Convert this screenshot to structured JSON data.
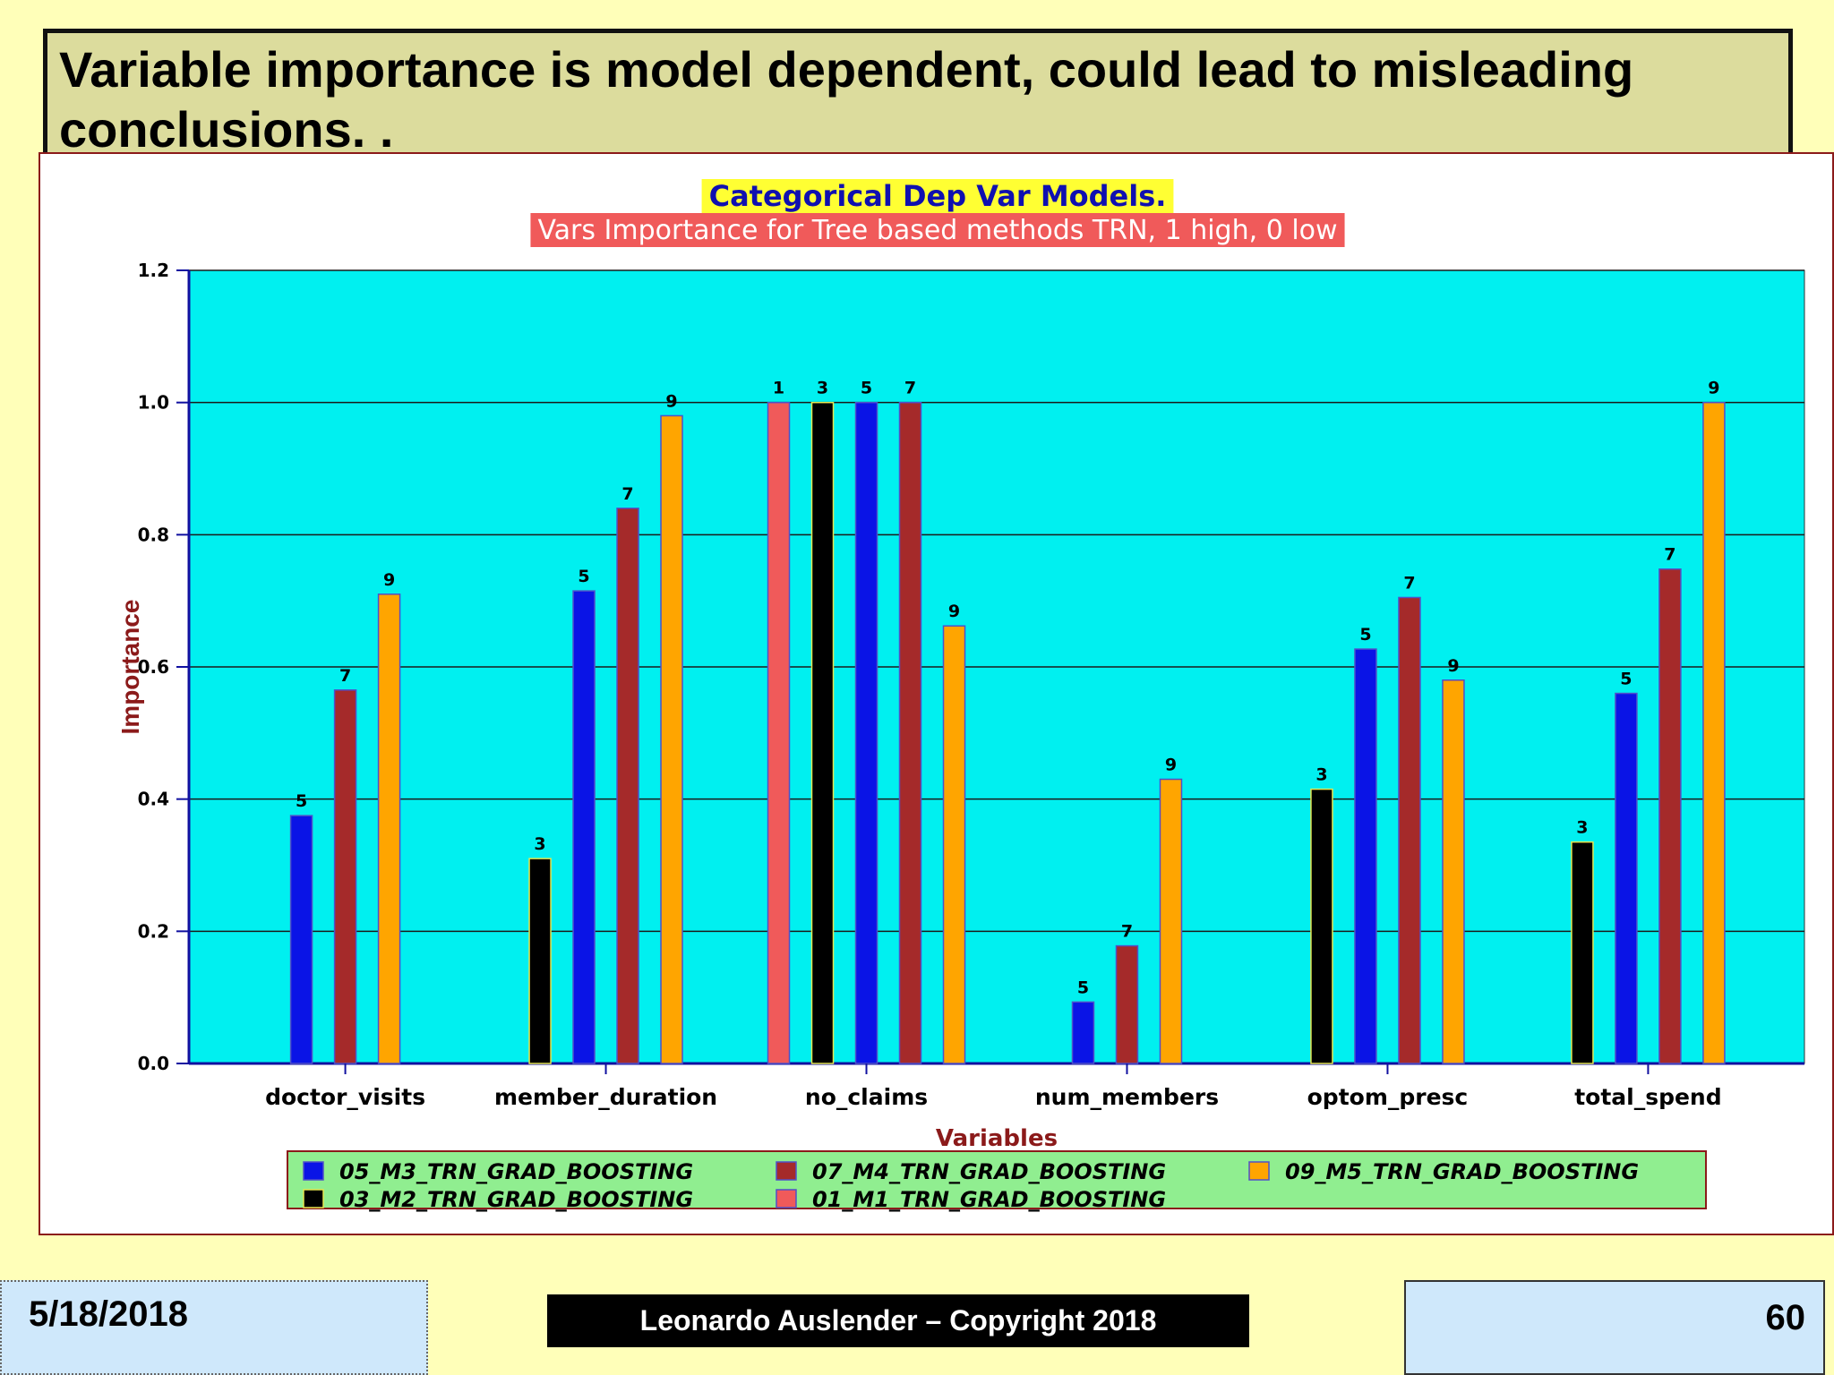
{
  "slide": {
    "title": "Variable importance is model dependent, could lead to misleading conclusions. .",
    "footer_date": "5/18/2018",
    "footer_copyright": "Leonardo Auslender – Copyright 2018",
    "page_number": "60"
  },
  "colors": {
    "plot_background": "#00F0F0",
    "title_highlight": "#FFFF33",
    "title_text": "#1010B0",
    "subtitle_highlight": "#F05A5A",
    "subtitle_text": "#FFFFFF",
    "axis_label": "#8B1A1A",
    "legend_background": "#90EE90"
  },
  "chart_data": {
    "type": "bar",
    "title": "Categorical Dep Var Models.",
    "subtitle": "Vars Importance for Tree based methods TRN, 1 high, 0 low",
    "xlabel": "Variables",
    "ylabel": "Importance",
    "ylim": [
      0,
      1.2
    ],
    "yticks": [
      "0.0",
      "0.2",
      "0.4",
      "0.6",
      "0.8",
      "1.0",
      "1.2"
    ],
    "grid": true,
    "categories": [
      "doctor_visits",
      "member_duration",
      "no_claims",
      "num_members",
      "optom_presc",
      "total_spend"
    ],
    "series": [
      {
        "name": "01_M1_TRN_GRAD_BOOSTING",
        "label": "1",
        "color": "#F05A5A",
        "values": [
          null,
          null,
          1.0,
          null,
          null,
          null
        ]
      },
      {
        "name": "03_M2_TRN_GRAD_BOOSTING",
        "label": "3",
        "color": "#000000",
        "values": [
          null,
          0.31,
          1.0,
          null,
          0.415,
          0.335
        ]
      },
      {
        "name": "05_M3_TRN_GRAD_BOOSTING",
        "label": "5",
        "color": "#0A14E6",
        "values": [
          0.375,
          0.715,
          1.0,
          0.093,
          0.627,
          0.56
        ]
      },
      {
        "name": "07_M4_TRN_GRAD_BOOSTING",
        "label": "7",
        "color": "#A52A2A",
        "values": [
          0.565,
          0.84,
          1.0,
          0.178,
          0.705,
          0.748
        ]
      },
      {
        "name": "09_M5_TRN_GRAD_BOOSTING",
        "label": "9",
        "color": "#FFA500",
        "values": [
          0.71,
          0.98,
          0.662,
          0.43,
          0.58,
          1.0
        ]
      }
    ],
    "legend": {
      "placement": "bottom",
      "order": [
        "05_M3_TRN_GRAD_BOOSTING",
        "07_M4_TRN_GRAD_BOOSTING",
        "09_M5_TRN_GRAD_BOOSTING",
        "03_M2_TRN_GRAD_BOOSTING",
        "01_M1_TRN_GRAD_BOOSTING"
      ]
    }
  }
}
